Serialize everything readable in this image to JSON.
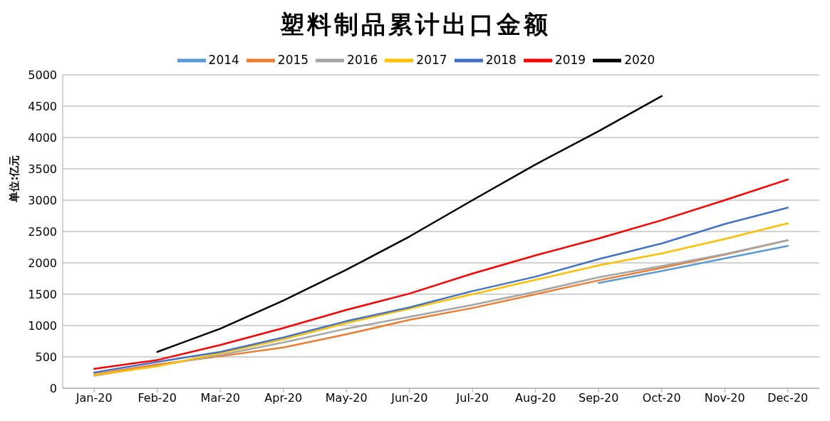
{
  "chart_data": {
    "type": "line",
    "title": "塑料制品累计出口金额",
    "ylabel": "单位:亿元",
    "categories": [
      "Jan-20",
      "Feb-20",
      "Mar-20",
      "Apr-20",
      "May-20",
      "Jun-20",
      "Jul-20",
      "Aug-20",
      "Sep-20",
      "Oct-20",
      "Nov-20",
      "Dec-20"
    ],
    "series": [
      {
        "name": "2014",
        "color": "#5b9bd5",
        "values": [
          null,
          null,
          null,
          null,
          null,
          null,
          null,
          null,
          1680,
          1870,
          2070,
          2270
        ]
      },
      {
        "name": "2015",
        "color": "#ed7d31",
        "values": [
          220,
          380,
          510,
          650,
          860,
          1090,
          1280,
          1500,
          1720,
          1920,
          2130,
          2360
        ]
      },
      {
        "name": "2016",
        "color": "#a5a5a5",
        "values": [
          200,
          360,
          530,
          730,
          950,
          1140,
          1330,
          1540,
          1770,
          1950,
          2140,
          2360
        ]
      },
      {
        "name": "2017",
        "color": "#ffc000",
        "values": [
          210,
          350,
          560,
          780,
          1040,
          1270,
          1500,
          1730,
          1960,
          2150,
          2380,
          2630
        ]
      },
      {
        "name": "2018",
        "color": "#4472c4",
        "values": [
          250,
          420,
          580,
          810,
          1070,
          1290,
          1550,
          1780,
          2060,
          2310,
          2620,
          2880
        ]
      },
      {
        "name": "2019",
        "color": "#ff0000",
        "values": [
          310,
          450,
          690,
          960,
          1250,
          1510,
          1830,
          2120,
          2390,
          2680,
          3000,
          3330
        ]
      },
      {
        "name": "2020",
        "color": "#000000",
        "values": [
          null,
          580,
          950,
          1400,
          1890,
          2420,
          3000,
          3570,
          4100,
          4660,
          null,
          null
        ]
      }
    ],
    "ylim": [
      0,
      5000
    ],
    "yticks": [
      0,
      500,
      1000,
      1500,
      2000,
      2500,
      3000,
      3500,
      4000,
      4500,
      5000
    ],
    "grid": "y",
    "legend": "top",
    "marker": "none",
    "line_style": "solid"
  }
}
